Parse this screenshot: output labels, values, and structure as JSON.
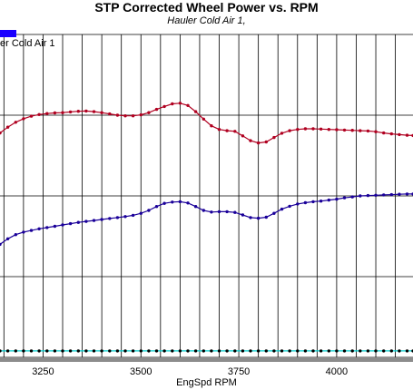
{
  "chart_data": {
    "type": "line",
    "title": "STP Corrected Wheel Power vs. RPM",
    "subtitle": "Hauler Cold Air 1,",
    "legend": {
      "label": "er Cold Air 1",
      "color": "#1a00ff",
      "placement": "top-left"
    },
    "xlabel": "EngSpd  RPM",
    "xlim": [
      3140,
      4195
    ],
    "xticks": [
      3250,
      3500,
      3750,
      4000
    ],
    "grid": true,
    "series": [
      {
        "color": "#b00020",
        "points": [
          [
            3140,
            0.695
          ],
          [
            3160,
            0.713
          ],
          [
            3180,
            0.728
          ],
          [
            3200,
            0.739
          ],
          [
            3220,
            0.747
          ],
          [
            3240,
            0.752
          ],
          [
            3260,
            0.755
          ],
          [
            3280,
            0.757
          ],
          [
            3300,
            0.758
          ],
          [
            3320,
            0.76
          ],
          [
            3340,
            0.762
          ],
          [
            3360,
            0.763
          ],
          [
            3380,
            0.761
          ],
          [
            3400,
            0.758
          ],
          [
            3420,
            0.754
          ],
          [
            3440,
            0.75
          ],
          [
            3460,
            0.748
          ],
          [
            3480,
            0.748
          ],
          [
            3500,
            0.751
          ],
          [
            3520,
            0.758
          ],
          [
            3540,
            0.768
          ],
          [
            3560,
            0.777
          ],
          [
            3580,
            0.785
          ],
          [
            3600,
            0.787
          ],
          [
            3620,
            0.78
          ],
          [
            3640,
            0.761
          ],
          [
            3660,
            0.738
          ],
          [
            3680,
            0.717
          ],
          [
            3700,
            0.706
          ],
          [
            3720,
            0.702
          ],
          [
            3740,
            0.7
          ],
          [
            3760,
            0.686
          ],
          [
            3780,
            0.671
          ],
          [
            3800,
            0.664
          ],
          [
            3820,
            0.667
          ],
          [
            3840,
            0.681
          ],
          [
            3860,
            0.694
          ],
          [
            3880,
            0.702
          ],
          [
            3900,
            0.706
          ],
          [
            3920,
            0.708
          ],
          [
            3940,
            0.708
          ],
          [
            3960,
            0.707
          ],
          [
            3980,
            0.706
          ],
          [
            4000,
            0.705
          ],
          [
            4020,
            0.704
          ],
          [
            4040,
            0.703
          ],
          [
            4060,
            0.702
          ],
          [
            4080,
            0.701
          ],
          [
            4100,
            0.699
          ],
          [
            4120,
            0.695
          ],
          [
            4140,
            0.692
          ],
          [
            4160,
            0.69
          ],
          [
            4180,
            0.688
          ],
          [
            4195,
            0.687
          ]
        ]
      },
      {
        "color": "#1a0099",
        "points": [
          [
            3140,
            0.35
          ],
          [
            3160,
            0.367
          ],
          [
            3180,
            0.38
          ],
          [
            3200,
            0.388
          ],
          [
            3220,
            0.393
          ],
          [
            3240,
            0.398
          ],
          [
            3260,
            0.402
          ],
          [
            3280,
            0.406
          ],
          [
            3300,
            0.41
          ],
          [
            3320,
            0.414
          ],
          [
            3340,
            0.418
          ],
          [
            3360,
            0.421
          ],
          [
            3380,
            0.424
          ],
          [
            3400,
            0.427
          ],
          [
            3420,
            0.43
          ],
          [
            3440,
            0.433
          ],
          [
            3460,
            0.436
          ],
          [
            3480,
            0.44
          ],
          [
            3500,
            0.446
          ],
          [
            3520,
            0.455
          ],
          [
            3540,
            0.467
          ],
          [
            3560,
            0.477
          ],
          [
            3580,
            0.481
          ],
          [
            3600,
            0.482
          ],
          [
            3620,
            0.478
          ],
          [
            3640,
            0.467
          ],
          [
            3660,
            0.455
          ],
          [
            3680,
            0.45
          ],
          [
            3700,
            0.451
          ],
          [
            3720,
            0.451
          ],
          [
            3740,
            0.449
          ],
          [
            3760,
            0.441
          ],
          [
            3780,
            0.433
          ],
          [
            3800,
            0.431
          ],
          [
            3820,
            0.434
          ],
          [
            3840,
            0.446
          ],
          [
            3860,
            0.459
          ],
          [
            3880,
            0.468
          ],
          [
            3900,
            0.475
          ],
          [
            3920,
            0.479
          ],
          [
            3940,
            0.482
          ],
          [
            3960,
            0.484
          ],
          [
            3980,
            0.487
          ],
          [
            4000,
            0.49
          ],
          [
            4020,
            0.494
          ],
          [
            4040,
            0.497
          ],
          [
            4060,
            0.5
          ],
          [
            4080,
            0.501
          ],
          [
            4100,
            0.502
          ],
          [
            4120,
            0.503
          ],
          [
            4140,
            0.504
          ],
          [
            4160,
            0.505
          ],
          [
            4180,
            0.506
          ],
          [
            4195,
            0.506
          ]
        ]
      },
      {
        "color": "#00cccc",
        "points": [
          [
            3140,
            0.02
          ],
          [
            3160,
            0.02
          ],
          [
            3180,
            0.02
          ],
          [
            3200,
            0.02
          ],
          [
            3220,
            0.02
          ],
          [
            3240,
            0.02
          ],
          [
            3260,
            0.02
          ],
          [
            3280,
            0.02
          ],
          [
            3300,
            0.02
          ],
          [
            3320,
            0.02
          ],
          [
            3340,
            0.02
          ],
          [
            3360,
            0.02
          ],
          [
            3380,
            0.02
          ],
          [
            3400,
            0.02
          ],
          [
            3420,
            0.02
          ],
          [
            3440,
            0.02
          ],
          [
            3460,
            0.02
          ],
          [
            3480,
            0.02
          ],
          [
            3500,
            0.02
          ],
          [
            3520,
            0.02
          ],
          [
            3540,
            0.02
          ],
          [
            3560,
            0.02
          ],
          [
            3580,
            0.02
          ],
          [
            3600,
            0.02
          ],
          [
            3620,
            0.02
          ],
          [
            3640,
            0.02
          ],
          [
            3660,
            0.02
          ],
          [
            3680,
            0.02
          ],
          [
            3700,
            0.02
          ],
          [
            3720,
            0.02
          ],
          [
            3740,
            0.02
          ],
          [
            3760,
            0.02
          ],
          [
            3780,
            0.02
          ],
          [
            3800,
            0.02
          ],
          [
            3820,
            0.02
          ],
          [
            3840,
            0.02
          ],
          [
            3860,
            0.02
          ],
          [
            3880,
            0.02
          ],
          [
            3900,
            0.02
          ],
          [
            3920,
            0.02
          ],
          [
            3940,
            0.02
          ],
          [
            3960,
            0.02
          ],
          [
            3980,
            0.02
          ],
          [
            4000,
            0.02
          ],
          [
            4020,
            0.02
          ],
          [
            4040,
            0.02
          ],
          [
            4060,
            0.02
          ],
          [
            4080,
            0.02
          ],
          [
            4100,
            0.02
          ],
          [
            4120,
            0.02
          ],
          [
            4140,
            0.02
          ],
          [
            4160,
            0.02
          ],
          [
            4180,
            0.02
          ],
          [
            4195,
            0.02
          ]
        ]
      }
    ]
  }
}
